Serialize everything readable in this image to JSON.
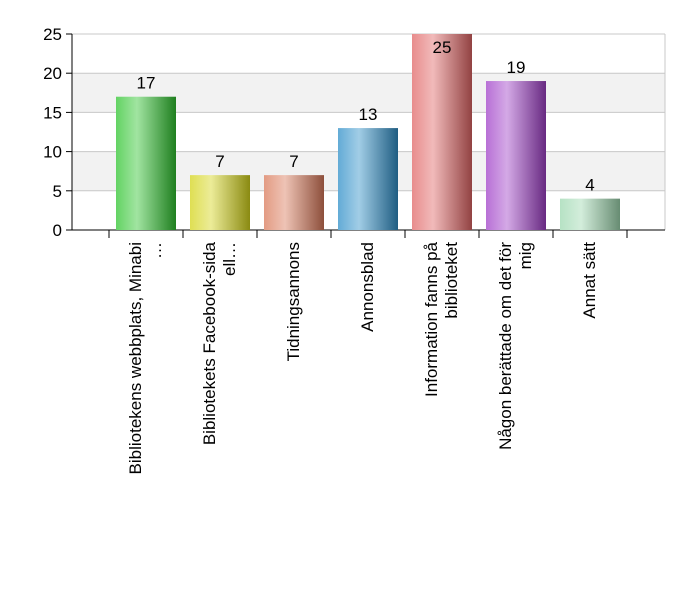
{
  "chart_data": {
    "type": "bar",
    "title": "",
    "xlabel": "",
    "ylabel": "",
    "ylim": [
      0,
      25
    ],
    "yticks": [
      0,
      5,
      10,
      15,
      20,
      25
    ],
    "grid": true,
    "legend": "none",
    "categories": [
      [
        "Bibliotekens webbplats, Minabi",
        "…"
      ],
      [
        "Bibliotekets Facebook-sida",
        "ell…"
      ],
      [
        "Tidningsannons"
      ],
      [
        "Annonsblad"
      ],
      [
        "Information fanns på",
        "biblioteket"
      ],
      [
        "Någon berättade om det för",
        "mig"
      ],
      [
        "Annat sätt"
      ]
    ],
    "values": [
      17,
      7,
      7,
      13,
      25,
      19,
      4
    ],
    "colors": [
      "#2fc42f",
      "#d4d41a",
      "#d97a5a",
      "#2f8fc8",
      "#e06666",
      "#a040c8",
      "#9ed8b0"
    ]
  }
}
